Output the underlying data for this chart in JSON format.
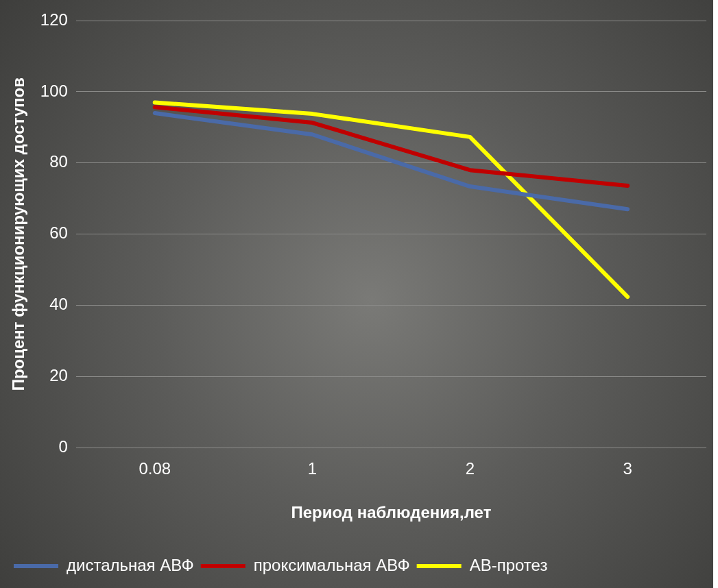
{
  "chart_data": {
    "type": "line",
    "xlabel": "Период наблюдения,лет",
    "ylabel": "Процент функционирующих доступов",
    "categories": [
      "0.08",
      "1",
      "2",
      "3"
    ],
    "series": [
      {
        "name": "дистальная АВФ",
        "color": "#4a6aa8",
        "values": [
          94,
          88,
          73.4,
          67
        ]
      },
      {
        "name": "проксимальная АВФ",
        "color": "#c00000",
        "values": [
          95.7,
          91.3,
          78,
          73.6
        ]
      },
      {
        "name": "АВ-протез",
        "color": "#ffff00",
        "values": [
          97,
          93.8,
          87.3,
          42.4
        ]
      }
    ],
    "ylim": [
      0,
      120
    ],
    "yticks": [
      0,
      20,
      40,
      60,
      80,
      100,
      120
    ],
    "grid": "y",
    "legend": "bottom",
    "marker": "none",
    "line_style": "solid"
  }
}
